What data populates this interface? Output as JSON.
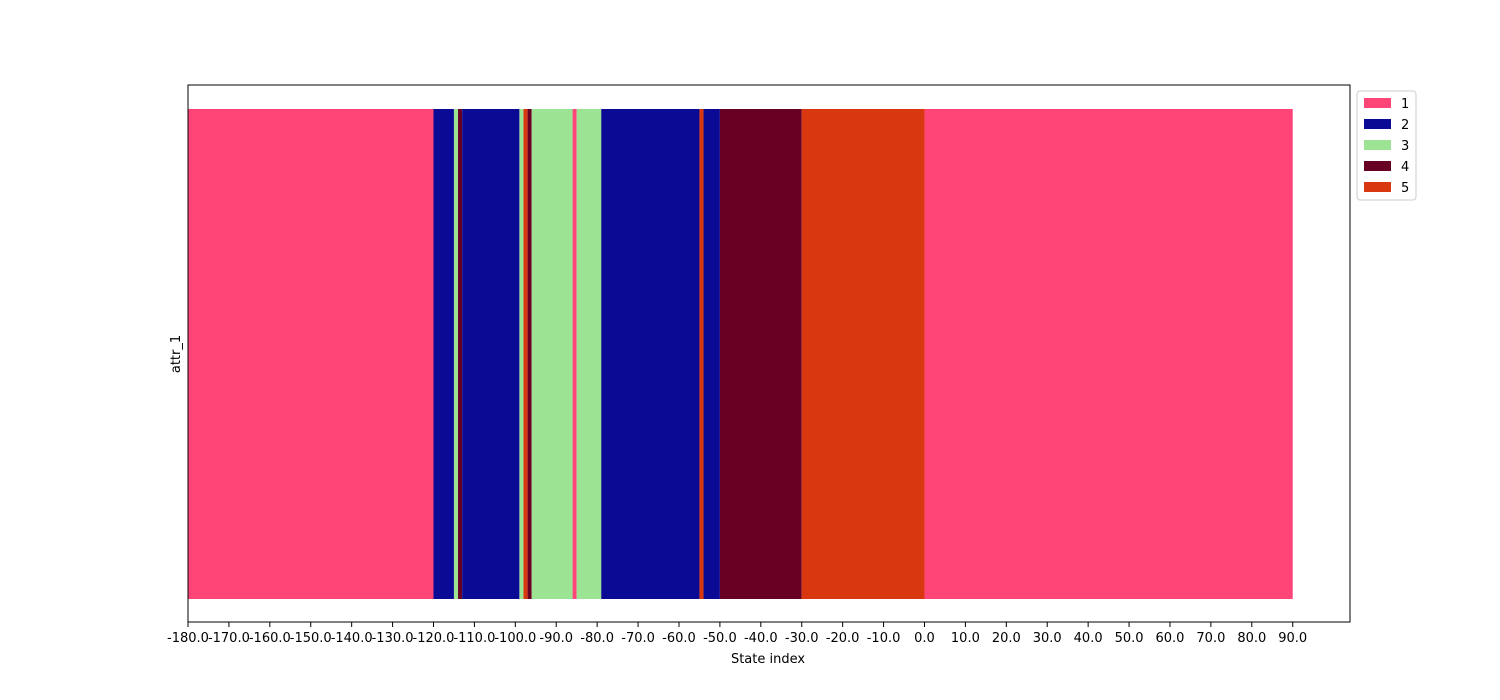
{
  "chart_data": {
    "type": "bar",
    "orientation": "horizontal-state-sequence",
    "xlabel": "State index",
    "ylabel": "attr_1",
    "xlim": [
      -180,
      104
    ],
    "xticks": [
      -180,
      -170,
      -160,
      -150,
      -140,
      -130,
      -120,
      -110,
      -100,
      -90,
      -80,
      -70,
      -60,
      -50,
      -40,
      -30,
      -20,
      -10,
      0,
      10,
      20,
      30,
      40,
      50,
      60,
      70,
      80,
      90
    ],
    "xtick_labels": [
      "-180.0",
      "-170.0",
      "-160.0",
      "-150.0",
      "-140.0",
      "-130.0",
      "-120.0",
      "-110.0",
      "-100.0",
      "-90.0",
      "-80.0",
      "-70.0",
      "-60.0",
      "-50.0",
      "-40.0",
      "-30.0",
      "-20.0",
      "-10.0",
      "0.0",
      "10.0",
      "20.0",
      "30.0",
      "40.0",
      "50.0",
      "60.0",
      "70.0",
      "80.0",
      "90.0"
    ],
    "legend_position": "outside-top-right",
    "grid": false,
    "states": [
      {
        "label": "1",
        "color": "#ff4478"
      },
      {
        "label": "2",
        "color": "#0a0a94"
      },
      {
        "label": "3",
        "color": "#9ce394"
      },
      {
        "label": "4",
        "color": "#680024"
      },
      {
        "label": "5",
        "color": "#d9370f"
      }
    ],
    "segments": [
      {
        "start": -180,
        "end": -120,
        "state": "1"
      },
      {
        "start": -120,
        "end": -115,
        "state": "2"
      },
      {
        "start": -115,
        "end": -114,
        "state": "3"
      },
      {
        "start": -114,
        "end": -113,
        "state": "4"
      },
      {
        "start": -113,
        "end": -99,
        "state": "2"
      },
      {
        "start": -99,
        "end": -98,
        "state": "3"
      },
      {
        "start": -98,
        "end": -97,
        "state": "5"
      },
      {
        "start": -97,
        "end": -96,
        "state": "4"
      },
      {
        "start": -96,
        "end": -86,
        "state": "3"
      },
      {
        "start": -86,
        "end": -85,
        "state": "1"
      },
      {
        "start": -85,
        "end": -79,
        "state": "3"
      },
      {
        "start": -79,
        "end": -55,
        "state": "2"
      },
      {
        "start": -55,
        "end": -54,
        "state": "5"
      },
      {
        "start": -54,
        "end": -50,
        "state": "2"
      },
      {
        "start": -50,
        "end": -30,
        "state": "4"
      },
      {
        "start": -30,
        "end": 0,
        "state": "5"
      },
      {
        "start": 0,
        "end": 90,
        "state": "1"
      }
    ]
  }
}
